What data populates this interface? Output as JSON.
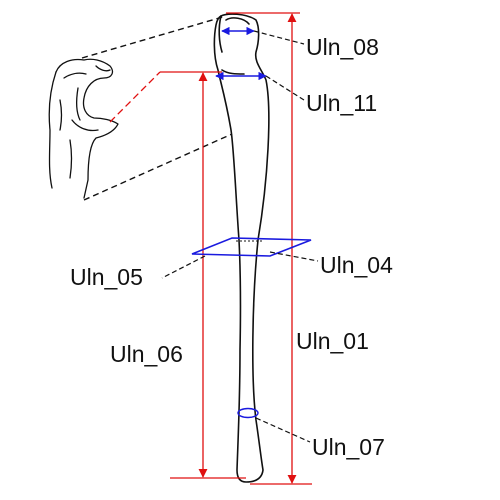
{
  "figure": {
    "colors": {
      "outline": "#111111",
      "leader": "#111111",
      "measure_red": "#e01010",
      "measure_blue": "#1a1adf"
    },
    "labels": {
      "uln_08": "Uln_08",
      "uln_11": "Uln_11",
      "uln_04": "Uln_04",
      "uln_05": "Uln_05",
      "uln_06": "Uln_06",
      "uln_01": "Uln_01",
      "uln_07": "Uln_07"
    }
  }
}
